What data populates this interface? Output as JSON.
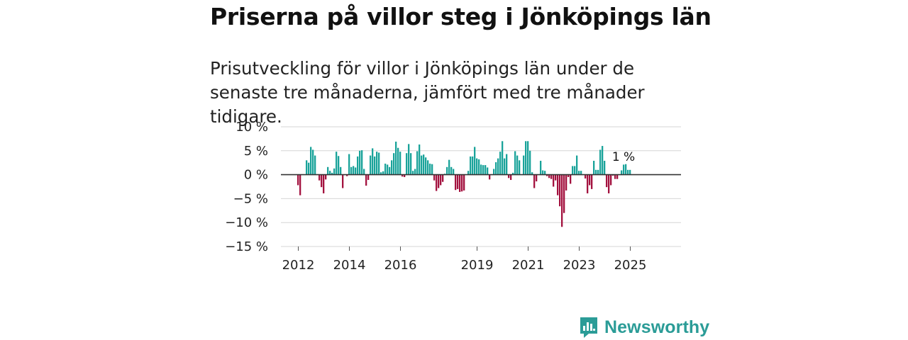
{
  "title": "Priserna på villor steg i Jönköpings län",
  "subtitle": "Prisutveckling för villor i Jönköpings län under de senaste tre månaderna, jämfört med tre månader tidigare.",
  "brand": "Newsworthy",
  "colors": {
    "positive": "#1aa39a",
    "negative": "#a3123f",
    "grid": "#d6d6d6",
    "zero": "#333333",
    "brand": "#2b9c97"
  },
  "chart_data": {
    "type": "bar",
    "title": "Priserna på villor steg i Jönköpings län",
    "xlabel": "",
    "ylabel": "",
    "ylim": [
      -15,
      10
    ],
    "yticks": [
      10,
      5,
      0,
      -5,
      -10,
      -15
    ],
    "ytick_labels": [
      "10 %",
      "5 %",
      "0 %",
      "−5 %",
      "−10 %",
      "−15 %"
    ],
    "xticks": [
      {
        "label": "2012",
        "index": 0
      },
      {
        "label": "2014",
        "index": 24
      },
      {
        "label": "2016",
        "index": 48
      },
      {
        "label": "2019",
        "index": 84
      },
      {
        "label": "2021",
        "index": 108
      },
      {
        "label": "2023",
        "index": 132
      },
      {
        "label": "2025",
        "index": 156
      }
    ],
    "first_period": "2012-01",
    "annotation": "1 %",
    "values": [
      -2.2,
      -4.3,
      0,
      0,
      3.0,
      2.5,
      5.8,
      5.2,
      4.0,
      0,
      -1.2,
      -2.6,
      -3.9,
      -1.0,
      1.6,
      0.8,
      0.4,
      1.3,
      4.8,
      3.9,
      1.6,
      -2.8,
      0,
      -0.3,
      4.3,
      1.6,
      1.8,
      1.5,
      3.8,
      5.0,
      5.1,
      1.2,
      -2.3,
      -1.1,
      4.0,
      5.5,
      3.8,
      4.8,
      4.6,
      0.5,
      0.7,
      2.3,
      2.1,
      1.6,
      3.0,
      4.5,
      6.9,
      5.6,
      4.8,
      -0.4,
      -0.5,
      4.5,
      6.4,
      4.5,
      0.8,
      1.2,
      4.9,
      6.3,
      4.0,
      4.2,
      3.6,
      3.0,
      2.3,
      2.2,
      -1.2,
      -3.4,
      -2.8,
      -2.2,
      -1.5,
      0.2,
      1.6,
      3.1,
      1.6,
      1.2,
      -3.2,
      -3.0,
      -3.6,
      -3.5,
      -3.3,
      0,
      0.8,
      3.8,
      3.8,
      5.8,
      3.4,
      3.2,
      2.1,
      2.0,
      2.0,
      1.5,
      -1.0,
      0,
      1.2,
      2.6,
      3.4,
      4.8,
      7.0,
      3.4,
      4.3,
      -0.7,
      -1.1,
      0.4,
      4.9,
      4.0,
      3.0,
      0,
      4.0,
      7.0,
      7.0,
      5.0,
      0.5,
      -2.8,
      -1.4,
      0,
      2.9,
      0.9,
      0.8,
      -0.3,
      -0.7,
      -0.9,
      -2.5,
      -1.2,
      -4.3,
      -6.6,
      -10.9,
      -8.0,
      -3.3,
      -0.5,
      -1.9,
      1.8,
      1.8,
      4.0,
      0.8,
      0.8,
      0.1,
      -0.8,
      -3.9,
      -2.2,
      -3.0,
      2.9,
      1.0,
      1.0,
      5.2,
      6.0,
      2.9,
      -2.6,
      -3.9,
      -2.2,
      -0.2,
      -0.9,
      -0.9,
      0,
      0.9,
      2.1,
      2.2,
      1.0,
      1.0
    ]
  }
}
